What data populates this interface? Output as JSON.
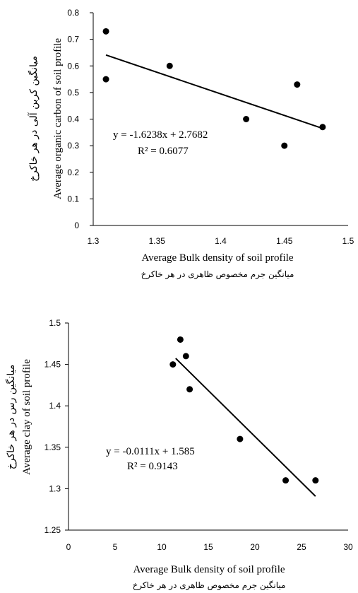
{
  "chart_data": [
    {
      "type": "scatter",
      "title": "",
      "xlabel": "Average  Bulk density  of soil profile",
      "xlabel_persian": "میانگین جرم مخصوص ظاهری در هر خاکرخ",
      "ylabel": "Average organic carbon of soil profile",
      "ylabel_persian": "میانگین  کربن  آلی  در  هر  خاکرخ",
      "xlim": [
        1.3,
        1.5
      ],
      "ylim": [
        0,
        0.8
      ],
      "x_ticks": [
        "1.3",
        "1.35",
        "1.4",
        "1.45",
        "1.5"
      ],
      "y_ticks": [
        "0",
        "0.1",
        "0.2",
        "0.3",
        "0.4",
        "0.5",
        "0.6",
        "0.7",
        "0.8"
      ],
      "grid": false,
      "series": [
        {
          "x": [
            1.31,
            1.31,
            1.36,
            1.42,
            1.45,
            1.46,
            1.48
          ],
          "y": [
            0.73,
            0.55,
            0.6,
            0.4,
            0.3,
            0.53,
            0.37
          ]
        }
      ],
      "trendline": {
        "slope": -1.6238,
        "intercept": 2.7682,
        "x_range": [
          1.31,
          1.48
        ]
      },
      "equation": "y = -1.6238x + 2.7682",
      "r_squared": "R² = 0.6077"
    },
    {
      "type": "scatter",
      "title": "",
      "xlabel": "Average  Bulk density  of soil profile",
      "xlabel_persian": "میانگین جرم مخصوص ظاهری در هر خاکرخ",
      "ylabel": "Average clay of soil profile",
      "ylabel_persian": "میانگین  رس  در  هر  خاکرخ",
      "xlim": [
        0,
        30
      ],
      "ylim": [
        1.25,
        1.5
      ],
      "x_ticks": [
        "0",
        "5",
        "10",
        "15",
        "20",
        "25",
        "30"
      ],
      "y_ticks": [
        "1.25",
        "1.3",
        "1.35",
        "1.4",
        "1.45",
        "1.5"
      ],
      "grid": false,
      "series": [
        {
          "x": [
            11.2,
            12.0,
            12.6,
            13.0,
            18.4,
            23.3,
            26.5
          ],
          "y": [
            1.45,
            1.48,
            1.46,
            1.42,
            1.36,
            1.31,
            1.31
          ]
        }
      ],
      "trendline": {
        "slope": -0.0111,
        "intercept": 1.585,
        "x_range": [
          11.5,
          26.5
        ]
      },
      "equation": "y = -0.0111x + 1.585",
      "r_squared": "R² = 0.9143"
    }
  ]
}
